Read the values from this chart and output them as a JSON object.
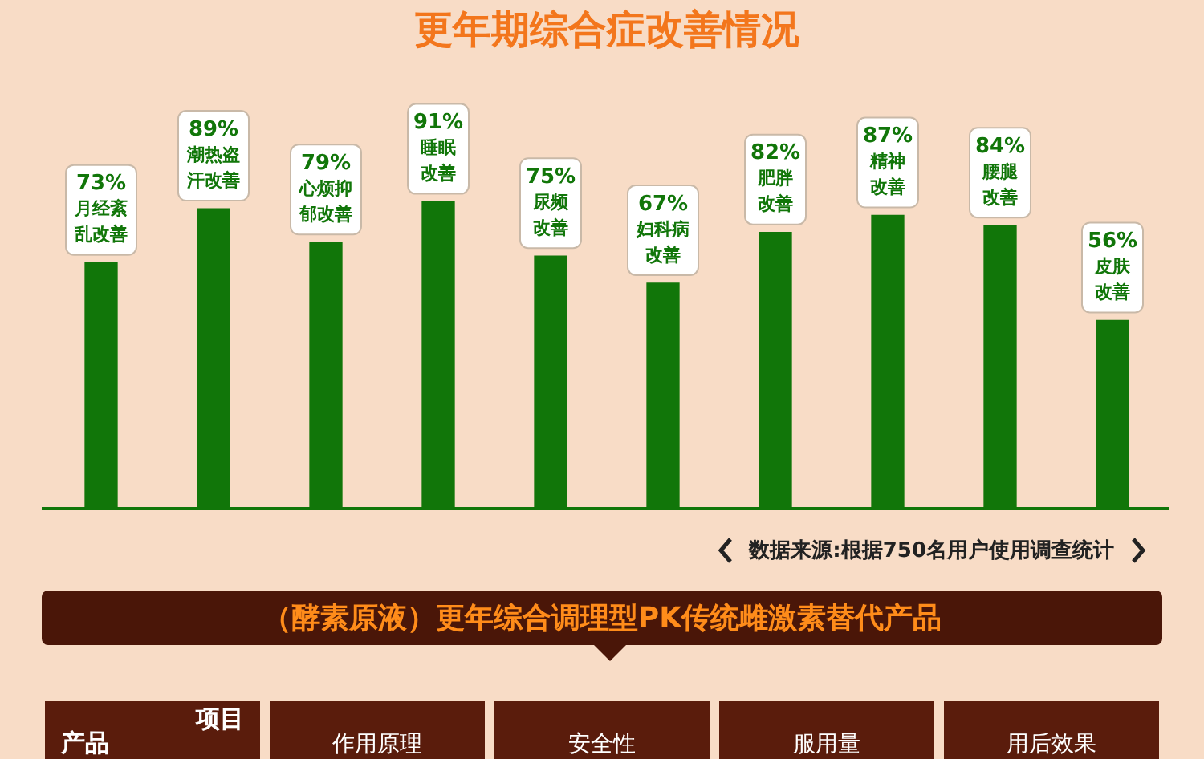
{
  "chart_data": {
    "type": "bar",
    "title": "更年期综合症改善情况",
    "categories": [
      "月经紊乱改善",
      "潮热盗汗改善",
      "心烦抑郁改善",
      "睡眠改善",
      "尿频改善",
      "妇科病改善",
      "肥胖改善",
      "精神改善",
      "腰腿改善",
      "皮肤改善"
    ],
    "values": [
      73,
      89,
      79,
      91,
      75,
      67,
      82,
      87,
      84,
      56
    ],
    "value_labels": [
      "73%",
      "89%",
      "79%",
      "91%",
      "75%",
      "67%",
      "82%",
      "87%",
      "84%",
      "56%"
    ],
    "color": "#117609",
    "tick_labels": false,
    "grid": false,
    "legend": false,
    "annotations": [
      "数据来源:根据750名用户使用调查统计",
      "（酵素原液）更年综合调理型PK传统雌激素替代产品",
      "项目",
      "产品",
      "作用原理",
      "安全性",
      "服用量",
      "用后效果"
    ]
  }
}
